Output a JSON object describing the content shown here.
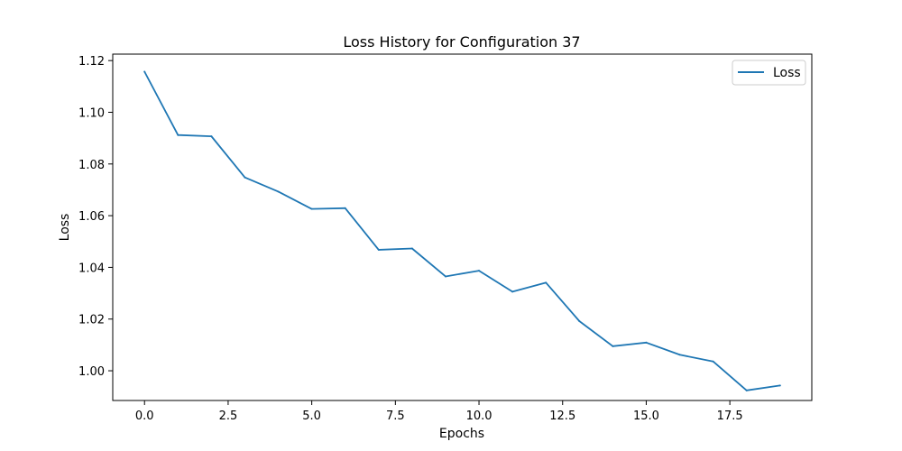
{
  "chart_data": {
    "type": "line",
    "title": "Loss History for Configuration 37",
    "xlabel": "Epochs",
    "ylabel": "Loss",
    "xlim": [
      -0.95,
      19.95
    ],
    "ylim": [
      0.9885,
      1.1225
    ],
    "xticks": [
      0.0,
      2.5,
      5.0,
      7.5,
      10.0,
      12.5,
      15.0,
      17.5
    ],
    "xtick_labels": [
      "0.0",
      "2.5",
      "5.0",
      "7.5",
      "10.0",
      "12.5",
      "15.0",
      "17.5"
    ],
    "yticks": [
      1.0,
      1.02,
      1.04,
      1.06,
      1.08,
      1.1,
      1.12
    ],
    "ytick_labels": [
      "1.00",
      "1.02",
      "1.04",
      "1.06",
      "1.08",
      "1.10",
      "1.12"
    ],
    "grid": false,
    "legend_position": "top-right",
    "series": [
      {
        "name": "Loss",
        "color": "#1f77b4",
        "x": [
          0,
          1,
          2,
          3,
          4,
          5,
          6,
          7,
          8,
          9,
          10,
          11,
          12,
          13,
          14,
          15,
          16,
          17,
          18,
          19
        ],
        "y": [
          1.1157,
          1.0912,
          1.0907,
          1.0748,
          1.0693,
          1.0626,
          1.0629,
          1.0468,
          1.0473,
          1.0365,
          1.0387,
          1.0306,
          1.0341,
          1.0192,
          1.0095,
          1.0109,
          1.0062,
          1.0036,
          0.9924,
          0.9943
        ]
      }
    ]
  }
}
